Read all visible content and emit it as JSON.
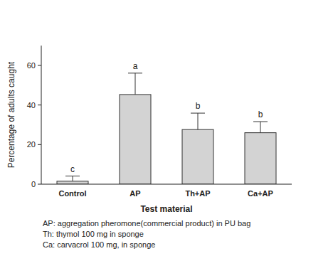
{
  "chart_data": {
    "type": "bar",
    "categories": [
      "Control",
      "AP",
      "Th+AP",
      "Ca+AP"
    ],
    "values": [
      1.5,
      45.3,
      27.6,
      26.0
    ],
    "errors": [
      2.6,
      10.8,
      8.3,
      5.6
    ],
    "significance_letters": [
      "c",
      "a",
      "b",
      "b"
    ],
    "color": "#d3d3d3",
    "x_label": "Test material",
    "y_label": "Percentage of adults caught",
    "ylim": [
      0,
      70
    ],
    "yticks": [
      0,
      20,
      40,
      60
    ],
    "grid": false,
    "footnotes": [
      "AP: aggregation pheromone(commercial product) in PU bag",
      "Th: thymol 100 mg in sponge",
      "Ca: carvacrol 100 mg, in sponge"
    ]
  }
}
